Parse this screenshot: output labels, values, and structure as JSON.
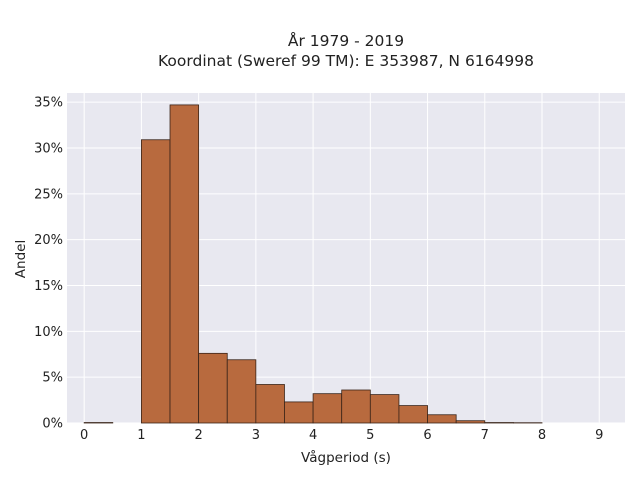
{
  "chart_data": {
    "type": "bar",
    "title_lines": [
      "År 1979 - 2019",
      "Koordinat (Sweref 99 TM): E 353987, N 6164998"
    ],
    "xlabel": "Vågperiod (s)",
    "ylabel": "Andel",
    "xlim": [
      -0.3,
      9.45
    ],
    "ylim": [
      0,
      36
    ],
    "x_ticks": [
      0,
      1,
      2,
      3,
      4,
      5,
      6,
      7,
      8,
      9
    ],
    "y_ticks": [
      0,
      5,
      10,
      15,
      20,
      25,
      30,
      35
    ],
    "y_tick_labels": [
      "0%",
      "5%",
      "10%",
      "15%",
      "20%",
      "25%",
      "30%",
      "35%"
    ],
    "bin_width": 0.5,
    "bins": [
      {
        "x0": 0.0,
        "value": 0.05
      },
      {
        "x0": 0.5,
        "value": 0.0
      },
      {
        "x0": 1.0,
        "value": 30.9
      },
      {
        "x0": 1.5,
        "value": 34.7
      },
      {
        "x0": 2.0,
        "value": 7.6
      },
      {
        "x0": 2.5,
        "value": 6.9
      },
      {
        "x0": 3.0,
        "value": 4.2
      },
      {
        "x0": 3.5,
        "value": 2.3
      },
      {
        "x0": 4.0,
        "value": 3.2
      },
      {
        "x0": 4.5,
        "value": 3.6
      },
      {
        "x0": 5.0,
        "value": 3.1
      },
      {
        "x0": 5.5,
        "value": 1.9
      },
      {
        "x0": 6.0,
        "value": 0.9
      },
      {
        "x0": 6.5,
        "value": 0.25
      },
      {
        "x0": 7.0,
        "value": 0.05
      },
      {
        "x0": 7.5,
        "value": 0.03
      }
    ],
    "grid": true,
    "legend": "none",
    "colors": {
      "bar_fill": "#b86a3e",
      "bar_edge": "#3a2418",
      "plot_bg": "#e8e8f0",
      "grid": "#ffffff"
    }
  }
}
